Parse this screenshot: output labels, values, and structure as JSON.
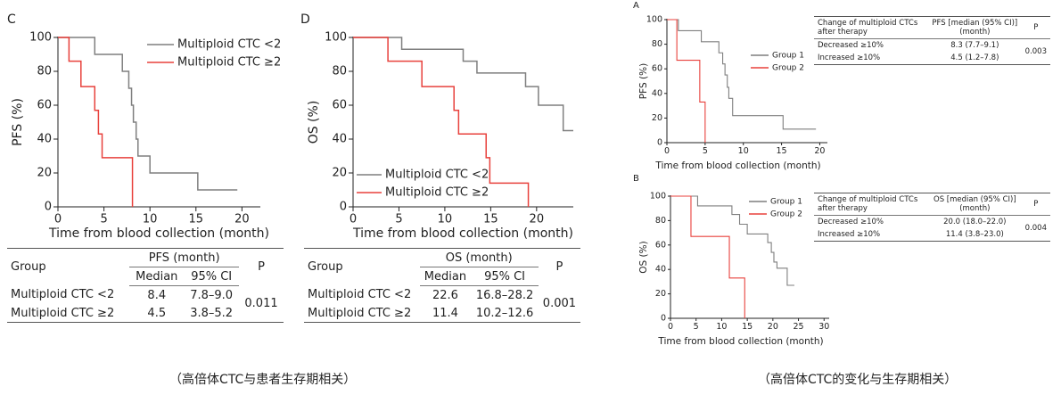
{
  "chart_data": [
    {
      "type": "step",
      "panel": "C",
      "xlabel": "Time from blood collection (month)",
      "ylabel": "PFS (%)",
      "xlim": [
        0,
        22
      ],
      "xticks": [
        0,
        5,
        10,
        15,
        20
      ],
      "ylim": [
        0,
        100
      ],
      "yticks": [
        0,
        20,
        40,
        60,
        80,
        100
      ],
      "legend": "upper right",
      "series": [
        {
          "name": "Multiploid CTC <2",
          "color": "#7f7f7f",
          "x": [
            0,
            4,
            7,
            7.7,
            8,
            8.2,
            8.5,
            8.7,
            10,
            15.2,
            19.5
          ],
          "values": [
            100,
            90,
            80,
            70,
            60,
            50,
            40,
            30,
            20,
            10,
            10
          ]
        },
        {
          "name": "Multiploid CTC ≥2",
          "color": "#e8413c",
          "x": [
            0,
            1.2,
            2.5,
            4,
            4.4,
            4.8,
            8.1
          ],
          "values": [
            100,
            86,
            71,
            57,
            43,
            29,
            0
          ]
        }
      ]
    },
    {
      "type": "step",
      "panel": "D",
      "xlabel": "Time from blood collection (month)",
      "ylabel": "OS (%)",
      "xlim": [
        0,
        24
      ],
      "xticks": [
        0,
        5,
        10,
        15,
        20
      ],
      "ylim": [
        0,
        100
      ],
      "yticks": [
        0,
        20,
        40,
        60,
        80,
        100
      ],
      "legend": "lower left",
      "series": [
        {
          "name": "Multiploid CTC <2",
          "color": "#7f7f7f",
          "x": [
            0,
            5.3,
            12,
            13.5,
            18.8,
            20.2,
            22.9,
            24
          ],
          "values": [
            100,
            93,
            86,
            79,
            71,
            60,
            45,
            45
          ]
        },
        {
          "name": "Multiploid CTC ≥2",
          "color": "#e8413c",
          "x": [
            0,
            3.8,
            7.5,
            11,
            11.5,
            14.5,
            14.9,
            19.1
          ],
          "values": [
            100,
            86,
            71,
            57,
            43,
            29,
            14,
            0
          ]
        }
      ]
    },
    {
      "type": "step",
      "panel": "A",
      "xlabel": "Time from blood collection (month)",
      "ylabel": "PFS (%)",
      "xlim": [
        0,
        21
      ],
      "xticks": [
        0,
        5,
        10,
        15,
        20
      ],
      "ylim": [
        0,
        100
      ],
      "yticks": [
        0,
        20,
        40,
        60,
        80,
        100
      ],
      "legend": "center right",
      "series": [
        {
          "name": "Group 1",
          "color": "#7f7f7f",
          "x": [
            0,
            1.5,
            4.5,
            6.8,
            7.3,
            7.6,
            7.9,
            8.1,
            8.6,
            15.2,
            19.5
          ],
          "values": [
            100,
            91,
            82,
            73,
            64,
            55,
            45,
            36,
            22,
            11,
            11
          ]
        },
        {
          "name": "Group 2",
          "color": "#e8413c",
          "x": [
            0,
            1.3,
            4.3,
            5
          ],
          "values": [
            100,
            67,
            33,
            0
          ]
        }
      ]
    },
    {
      "type": "step",
      "panel": "B",
      "xlabel": "Time from blood collection (month)",
      "ylabel": "OS (%)",
      "xlim": [
        0,
        31
      ],
      "xticks": [
        0,
        5,
        10,
        15,
        20,
        25,
        30
      ],
      "ylim": [
        0,
        100
      ],
      "yticks": [
        0,
        20,
        40,
        60,
        80,
        100
      ],
      "legend": "upper right",
      "series": [
        {
          "name": "Group 1",
          "color": "#7f7f7f",
          "x": [
            0,
            5.3,
            12,
            13.5,
            15,
            19,
            19.7,
            20.2,
            20.8,
            22.8,
            24.2
          ],
          "values": [
            100,
            92,
            85,
            77,
            69,
            62,
            54,
            46,
            41,
            27,
            27
          ]
        },
        {
          "name": "Group 2",
          "color": "#e8413c",
          "x": [
            0,
            4,
            11.5,
            14.5
          ],
          "values": [
            100,
            67,
            33,
            0
          ]
        }
      ]
    }
  ],
  "tables": [
    {
      "header": {
        "group": "Group",
        "measure": "PFS (month)",
        "median": "Median",
        "ci": "95% CI",
        "p": "P"
      },
      "rows": [
        [
          "Multiploid CTC <2",
          "8.4",
          "7.8–9.0"
        ],
        [
          "Multiploid CTC ≥2",
          "4.5",
          "3.8–5.2"
        ]
      ],
      "p_value": "0.011"
    },
    {
      "header": {
        "group": "Group",
        "measure": "OS (month)",
        "median": "Median",
        "ci": "95% CI",
        "p": "P"
      },
      "rows": [
        [
          "Multiploid CTC <2",
          "22.6",
          "16.8–28.2"
        ],
        [
          "Multiploid CTC ≥2",
          "11.4",
          "10.2–12.6"
        ]
      ],
      "p_value": "0.001"
    },
    {
      "header": {
        "group": "Change of multiploid CTCs after therapy",
        "measure": "PFS [median (95% CI)] (month)",
        "p": "P"
      },
      "rows": [
        [
          "Decreased ≥10%",
          "8.3 (7.7–9.1)"
        ],
        [
          "Increased ≥10%",
          "4.5 (1.2–7.8)"
        ]
      ],
      "p_value": "0.003"
    },
    {
      "header": {
        "group": "Change of multiploid CTCs after therapy",
        "measure": "OS [median (95% CI)] (month)",
        "p": "P"
      },
      "rows": [
        [
          "Decreased ≥10%",
          "20.0 (18.0–22.0)"
        ],
        [
          "Increased ≥10%",
          "11.4 (3.8–23.0)"
        ]
      ],
      "p_value": "0.004"
    }
  ],
  "captions": [
    "（高倍体CTC与患者生存期相关）",
    "（高倍体CTC的变化与生存期相关）"
  ]
}
